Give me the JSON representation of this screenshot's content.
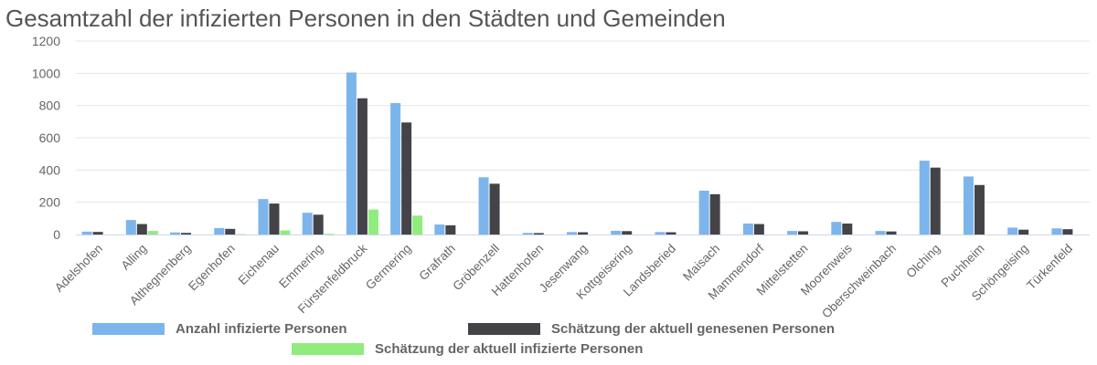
{
  "chart_data": {
    "type": "bar",
    "title": "Gesamtzahl der infizierten Personen in den Städten und Gemeinden",
    "xlabel": "",
    "ylabel": "",
    "ylim": [
      0,
      1200
    ],
    "yticks": [
      0,
      200,
      400,
      600,
      800,
      1000,
      1200
    ],
    "grid": true,
    "legend_position": "bottom",
    "categories": [
      "Adelshofen",
      "Alling",
      "Althegnenberg",
      "Egenhofen",
      "Eichenau",
      "Emmering",
      "Fürstenfeldbruck",
      "Germering",
      "Grafrath",
      "Gröbenzell",
      "Hattenhofen",
      "Jesenwang",
      "Kottgeisering",
      "Landsberied",
      "Maisach",
      "Mammendorf",
      "Mittelstetten",
      "Moorenweis",
      "Oberschweinbach",
      "Olching",
      "Puchheim",
      "Schöngeising",
      "Türkenfeld"
    ],
    "series": [
      {
        "name": "Anzahl infizierte Personen",
        "color": "#7cb5ec",
        "values": [
          18,
          90,
          13,
          40,
          220,
          135,
          1005,
          815,
          62,
          355,
          10,
          15,
          23,
          15,
          272,
          68,
          22,
          78,
          22,
          458,
          360,
          43,
          38
        ]
      },
      {
        "name": "Schätzung der aktuell genesenen Personen",
        "color": "#434348",
        "values": [
          16,
          65,
          10,
          35,
          192,
          123,
          845,
          695,
          57,
          315,
          9,
          14,
          21,
          14,
          250,
          65,
          20,
          68,
          19,
          415,
          307,
          30,
          33
        ]
      },
      {
        "name": "Schätzung der aktuell infizierte Personen",
        "color": "#90ed7d",
        "values": [
          0,
          22,
          0,
          2,
          25,
          4,
          155,
          117,
          0,
          0,
          0,
          0,
          0,
          0,
          0,
          0,
          0,
          0,
          0,
          0,
          0,
          0,
          0
        ]
      }
    ]
  }
}
